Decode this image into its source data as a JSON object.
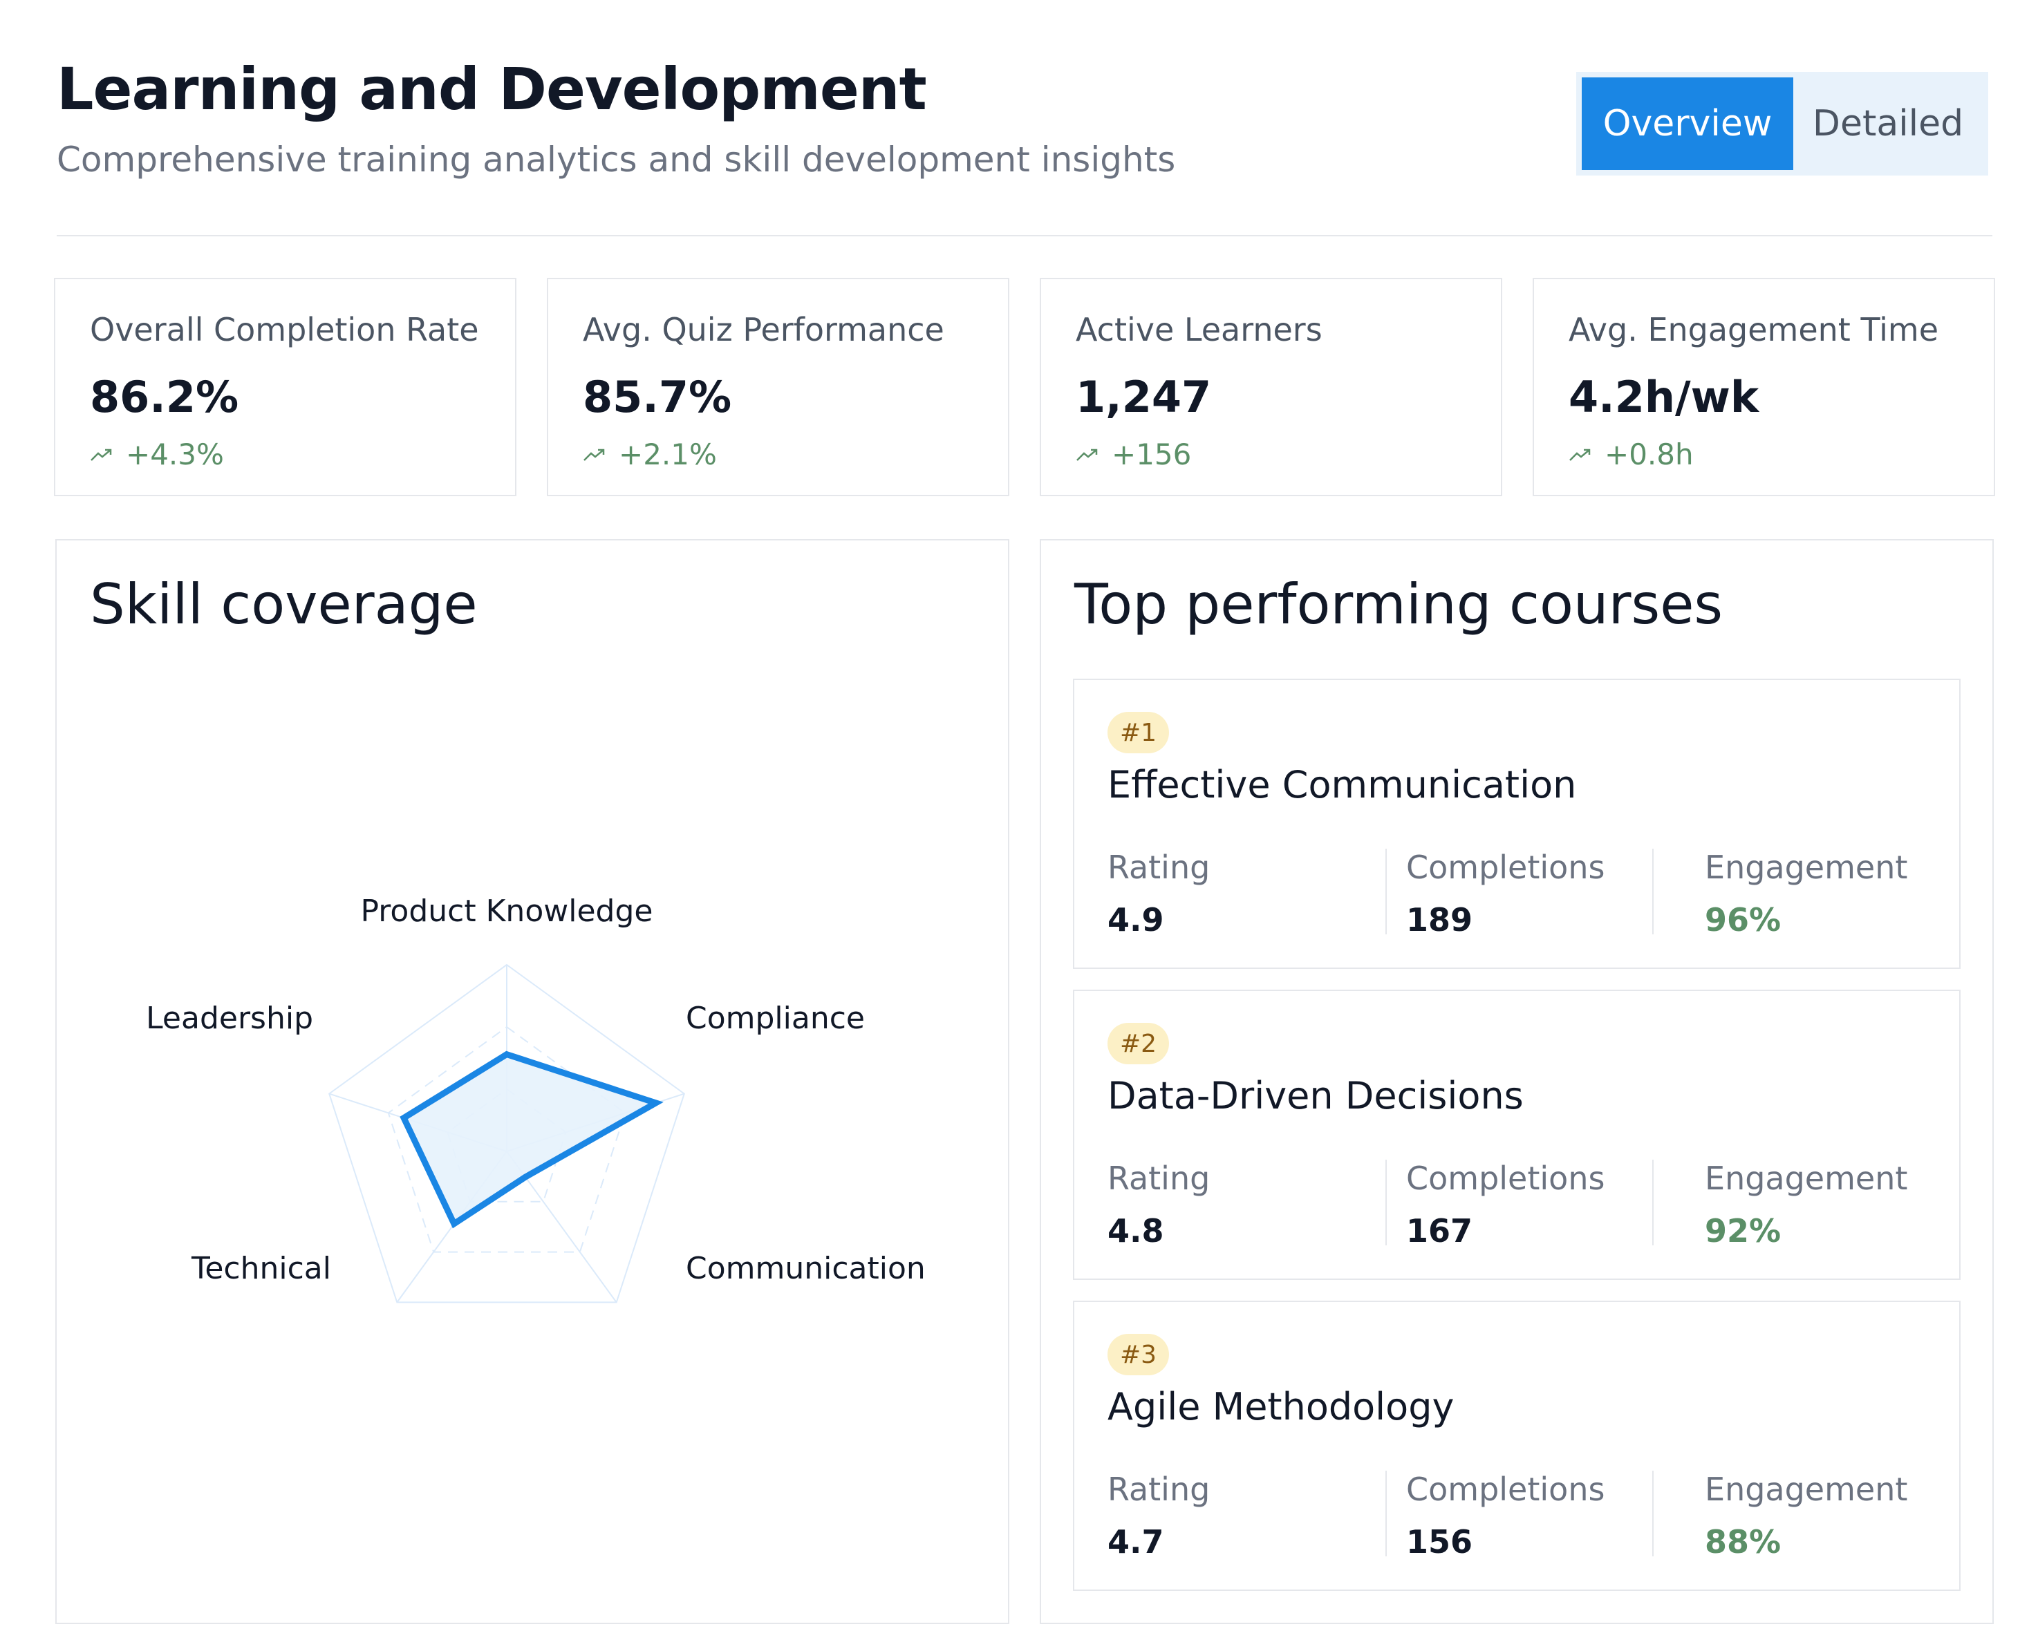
{
  "header": {
    "title": "Learning and Development",
    "subtitle": "Comprehensive training analytics and skill development insights",
    "view_toggle": {
      "active": "Overview",
      "inactive": "Detailed"
    }
  },
  "kpis": [
    {
      "label": "Overall Completion Rate",
      "value": "86.2%",
      "delta": "+4.3%"
    },
    {
      "label": "Avg. Quiz Performance",
      "value": "85.7%",
      "delta": "+2.1%"
    },
    {
      "label": "Active Learners",
      "value": "1,247",
      "delta": "+156"
    },
    {
      "label": "Avg. Engagement Time",
      "value": "4.2h/wk",
      "delta": "+0.8h"
    }
  ],
  "skill_panel": {
    "title": "Skill coverage"
  },
  "chart_data": {
    "type": "radar",
    "categories": [
      "Product Knowledge",
      "Compliance",
      "Communication",
      "Technical",
      "Leadership"
    ],
    "values": [
      52,
      84,
      17,
      48,
      58
    ],
    "range": [
      0,
      100
    ],
    "grid_levels": 3
  },
  "courses_panel": {
    "title": "Top performing courses",
    "metric_labels": {
      "rating": "Rating",
      "completions": "Completions",
      "engagement": "Engagement"
    },
    "courses": [
      {
        "rank": "#1",
        "name": "Effective Communication",
        "rating": "4.9",
        "completions": "189",
        "engagement": "96%"
      },
      {
        "rank": "#2",
        "name": "Data-Driven Decisions",
        "rating": "4.8",
        "completions": "167",
        "engagement": "92%"
      },
      {
        "rank": "#3",
        "name": "Agile Methodology",
        "rating": "4.7",
        "completions": "156",
        "engagement": "88%"
      }
    ]
  },
  "colors": {
    "accent": "#1a86e4",
    "positive": "#5b8f67",
    "badge_bg": "#fcf0c6",
    "radar_fill": "#e6f2fc"
  }
}
